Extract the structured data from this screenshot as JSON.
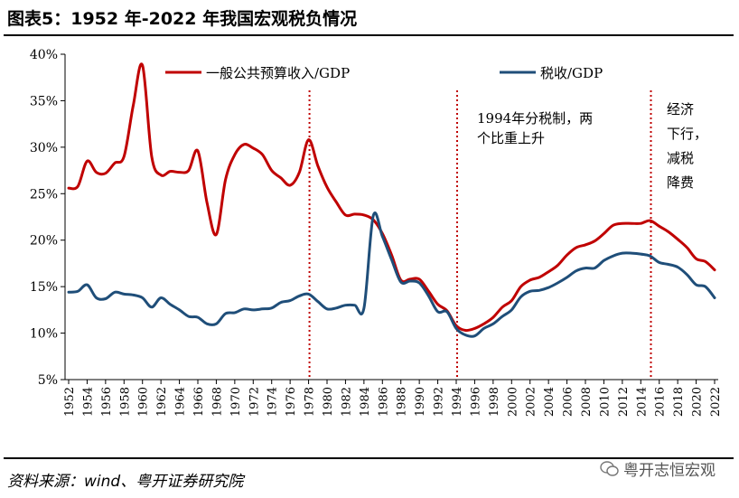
{
  "header": {
    "title": "图表5：1952 年-2022 年我国宏观税负情况"
  },
  "footer": {
    "source": "资料来源：wind、粤开证券研究院",
    "watermark": "粤开志恒宏观"
  },
  "colors": {
    "fiscal": "#C00000",
    "tax": "#1F4E79",
    "marker": "#C00000"
  },
  "chart_data": {
    "type": "line",
    "title": "",
    "xlabel": "",
    "ylabel": "",
    "ylim": [
      5,
      40
    ],
    "yticks": [
      "5%",
      "10%",
      "15%",
      "20%",
      "25%",
      "30%",
      "35%",
      "40%"
    ],
    "xlim": [
      1952,
      2022
    ],
    "xticks": [
      "1952",
      "1954",
      "1956",
      "1958",
      "1960",
      "1962",
      "1964",
      "1966",
      "1968",
      "1970",
      "1972",
      "1974",
      "1976",
      "1978",
      "1980",
      "1982",
      "1984",
      "1986",
      "1988",
      "1990",
      "1992",
      "1994",
      "1996",
      "1998",
      "2000",
      "2002",
      "2004",
      "2006",
      "2008",
      "2010",
      "2012",
      "2014",
      "2016",
      "2018",
      "2020",
      "2022"
    ],
    "series": [
      {
        "name": "一般公共预算收入/GDP",
        "color": "#C00000",
        "x": [
          1952,
          1953,
          1954,
          1955,
          1956,
          1957,
          1958,
          1959,
          1960,
          1961,
          1962,
          1963,
          1964,
          1965,
          1966,
          1967,
          1968,
          1969,
          1970,
          1971,
          1972,
          1973,
          1974,
          1975,
          1976,
          1977,
          1978,
          1979,
          1980,
          1981,
          1982,
          1983,
          1984,
          1985,
          1986,
          1987,
          1988,
          1989,
          1990,
          1991,
          1992,
          1993,
          1994,
          1995,
          1996,
          1997,
          1998,
          1999,
          2000,
          2001,
          2002,
          2003,
          2004,
          2005,
          2006,
          2007,
          2008,
          2009,
          2010,
          2011,
          2012,
          2013,
          2014,
          2015,
          2016,
          2017,
          2018,
          2019,
          2020,
          2021,
          2022
        ],
        "values": [
          25.6,
          25.8,
          28.5,
          27.3,
          27.2,
          28.3,
          29.0,
          34.5,
          38.8,
          29.0,
          27.0,
          27.4,
          27.3,
          27.5,
          29.6,
          24.0,
          20.6,
          26.5,
          29.2,
          30.3,
          29.9,
          29.2,
          27.5,
          26.7,
          25.9,
          27.3,
          30.8,
          28.0,
          25.7,
          24.1,
          22.7,
          22.8,
          22.7,
          22.2,
          20.7,
          18.4,
          15.7,
          15.8,
          15.8,
          14.5,
          13.1,
          12.4,
          10.8,
          10.3,
          10.5,
          11.0,
          11.7,
          12.8,
          13.5,
          15.0,
          15.7,
          16.0,
          16.6,
          17.3,
          18.4,
          19.2,
          19.5,
          19.9,
          20.7,
          21.6,
          21.8,
          21.8,
          21.8,
          22.1,
          21.5,
          20.9,
          20.1,
          19.2,
          18.0,
          17.7,
          16.8
        ]
      },
      {
        "name": "税收/GDP",
        "color": "#1F4E79",
        "x": [
          1952,
          1953,
          1954,
          1955,
          1956,
          1957,
          1958,
          1959,
          1960,
          1961,
          1962,
          1963,
          1964,
          1965,
          1966,
          1967,
          1968,
          1969,
          1970,
          1971,
          1972,
          1973,
          1974,
          1975,
          1976,
          1977,
          1978,
          1979,
          1980,
          1981,
          1982,
          1983,
          1984,
          1985,
          1986,
          1987,
          1988,
          1989,
          1990,
          1991,
          1992,
          1993,
          1994,
          1995,
          1996,
          1997,
          1998,
          1999,
          2000,
          2001,
          2002,
          2003,
          2004,
          2005,
          2006,
          2007,
          2008,
          2009,
          2010,
          2011,
          2012,
          2013,
          2014,
          2015,
          2016,
          2017,
          2018,
          2019,
          2020,
          2021,
          2022
        ],
        "values": [
          14.4,
          14.5,
          15.2,
          13.8,
          13.7,
          14.4,
          14.2,
          14.1,
          13.8,
          12.8,
          13.8,
          13.1,
          12.5,
          11.8,
          11.7,
          11.0,
          11.0,
          12.1,
          12.2,
          12.6,
          12.5,
          12.6,
          12.7,
          13.3,
          13.5,
          14.0,
          14.2,
          13.4,
          12.6,
          12.7,
          13.0,
          13.0,
          12.7,
          22.6,
          20.4,
          17.9,
          15.5,
          15.6,
          15.4,
          14.0,
          12.3,
          12.3,
          10.5,
          9.8,
          9.7,
          10.5,
          11.0,
          11.8,
          12.5,
          13.9,
          14.5,
          14.6,
          14.9,
          15.4,
          16.0,
          16.7,
          17.0,
          17.0,
          17.8,
          18.3,
          18.6,
          18.6,
          18.5,
          18.3,
          17.6,
          17.4,
          17.1,
          16.3,
          15.2,
          15.0,
          13.8
        ]
      }
    ],
    "annotations": [
      {
        "x": 1978,
        "text_lines": []
      },
      {
        "x": 1994,
        "text_lines": [
          "1994年分税制，两",
          "个比重上升"
        ]
      },
      {
        "x": 2015,
        "text_lines": [
          "经济",
          "下行，",
          "减税",
          "降费"
        ]
      }
    ]
  }
}
